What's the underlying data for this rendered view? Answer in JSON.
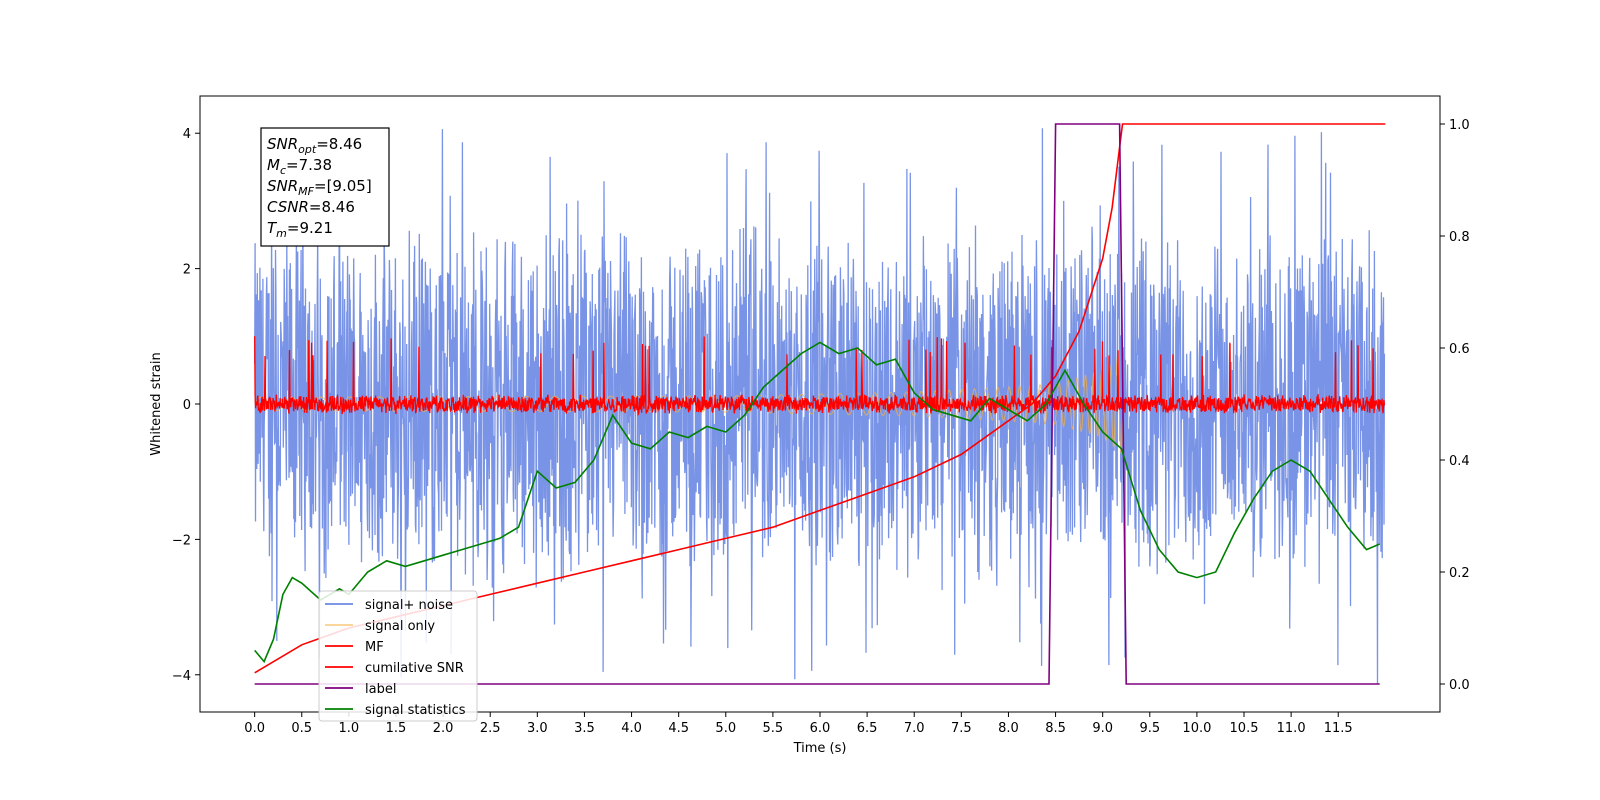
{
  "chart_data": {
    "type": "line",
    "xlabel": "Time (s)",
    "ylabel": "Whitened strain",
    "xlim": [
      -0.58,
      12.58
    ],
    "ylim": [
      -4.55,
      4.55
    ],
    "y2lim": [
      -0.05,
      1.05
    ],
    "x_ticks": [
      0.0,
      0.5,
      1.0,
      1.5,
      2.0,
      2.5,
      3.0,
      3.5,
      4.0,
      4.5,
      5.0,
      5.5,
      6.0,
      6.5,
      7.0,
      7.5,
      8.0,
      8.5,
      9.0,
      9.5,
      10.0,
      10.5,
      11.0,
      11.5
    ],
    "x_tick_labels": [
      "0.0",
      "0.5",
      "1.0",
      "1.5",
      "2.0",
      "2.5",
      "3.0",
      "3.5",
      "4.0",
      "4.5",
      "5.0",
      "5.5",
      "6.0",
      "6.5",
      "7.0",
      "7.5",
      "8.0",
      "8.5",
      "9.0",
      "9.5",
      "10.0",
      "10.5",
      "11.0",
      "11.5"
    ],
    "y_ticks": [
      -4,
      -2,
      0,
      2,
      4
    ],
    "y_tick_labels": [
      "−4",
      "−2",
      "0",
      "2",
      "4"
    ],
    "y2_ticks": [
      0.0,
      0.2,
      0.4,
      0.6,
      0.8,
      1.0
    ],
    "y2_tick_labels": [
      "0.0",
      "0.2",
      "0.4",
      "0.6",
      "0.8",
      "1.0"
    ],
    "grid": false,
    "legend_position": "lower-left",
    "annotation": {
      "lines": [
        {
          "sym": "SNR",
          "sub": "opt",
          "value": "=8.46"
        },
        {
          "sym": "M",
          "sub": "c",
          "value": "=7.38"
        },
        {
          "sym": "SNR",
          "sub": "MF",
          "value": "=[9.05]"
        },
        {
          "sym": "CSNR",
          "sub": "",
          "value": "=8.46"
        },
        {
          "sym": "T",
          "sub": "m",
          "value": "=9.21"
        }
      ]
    },
    "series": [
      {
        "name": "signal+ noise",
        "color": "#6a88e3",
        "axis": "left",
        "style": "noise",
        "x_range": [
          0.0,
          11.99
        ],
        "mean": 0.0,
        "band": [
          -2.6,
          3.0
        ],
        "extremes_max": 4.1,
        "extremes_min": -4.15
      },
      {
        "name": "signal only",
        "color": "#f5b041",
        "axis": "left",
        "style": "chirp",
        "x_range": [
          0.0,
          9.21
        ],
        "envelope": [
          [
            0.0,
            0.1
          ],
          [
            5.0,
            0.12
          ],
          [
            7.0,
            0.18
          ],
          [
            8.0,
            0.25
          ],
          [
            8.5,
            0.3
          ],
          [
            9.0,
            0.5
          ],
          [
            9.21,
            0.75
          ]
        ]
      },
      {
        "name": "MF",
        "color": "#ff0000",
        "axis": "left",
        "style": "noise",
        "x_range": [
          0.0,
          11.99
        ],
        "mean": 0.0,
        "band": [
          -0.15,
          0.15
        ],
        "extremes_max": 1.0,
        "extremes_min": -0.15
      },
      {
        "name": "cumilative SNR",
        "color": "#ff0000",
        "axis": "right",
        "x": [
          0.0,
          0.5,
          1.0,
          1.5,
          2.0,
          2.5,
          3.0,
          3.5,
          4.0,
          4.5,
          5.0,
          5.5,
          6.0,
          6.5,
          7.0,
          7.5,
          8.0,
          8.25,
          8.5,
          8.75,
          9.0,
          9.1,
          9.21,
          12.0
        ],
        "y": [
          0.02,
          0.07,
          0.1,
          0.12,
          0.14,
          0.16,
          0.18,
          0.2,
          0.22,
          0.24,
          0.26,
          0.28,
          0.31,
          0.34,
          0.37,
          0.41,
          0.47,
          0.5,
          0.55,
          0.63,
          0.76,
          0.85,
          1.0,
          1.0
        ]
      },
      {
        "name": "label",
        "color": "#800080",
        "axis": "right",
        "x": [
          0.0,
          8.43,
          8.5,
          9.18,
          9.25,
          11.94
        ],
        "y": [
          0.0,
          0.0,
          1.0,
          1.0,
          0.0,
          0.0
        ]
      },
      {
        "name": "signal statistics",
        "color": "#008000",
        "axis": "right",
        "x": [
          0.0,
          0.1,
          0.2,
          0.3,
          0.4,
          0.5,
          0.7,
          0.9,
          1.0,
          1.2,
          1.4,
          1.6,
          1.8,
          2.0,
          2.2,
          2.4,
          2.6,
          2.8,
          3.0,
          3.2,
          3.4,
          3.6,
          3.8,
          4.0,
          4.2,
          4.4,
          4.6,
          4.8,
          5.0,
          5.2,
          5.4,
          5.6,
          5.8,
          6.0,
          6.2,
          6.4,
          6.6,
          6.8,
          7.0,
          7.2,
          7.4,
          7.6,
          7.8,
          8.0,
          8.2,
          8.4,
          8.6,
          8.8,
          9.0,
          9.2,
          9.4,
          9.6,
          9.8,
          10.0,
          10.2,
          10.4,
          10.6,
          10.8,
          11.0,
          11.2,
          11.4,
          11.6,
          11.8,
          11.94
        ],
        "y": [
          0.06,
          0.04,
          0.08,
          0.16,
          0.19,
          0.18,
          0.15,
          0.17,
          0.16,
          0.2,
          0.22,
          0.21,
          0.22,
          0.23,
          0.24,
          0.25,
          0.26,
          0.28,
          0.38,
          0.35,
          0.36,
          0.4,
          0.48,
          0.43,
          0.42,
          0.45,
          0.44,
          0.46,
          0.45,
          0.48,
          0.53,
          0.56,
          0.59,
          0.61,
          0.59,
          0.6,
          0.57,
          0.58,
          0.52,
          0.49,
          0.48,
          0.47,
          0.51,
          0.49,
          0.47,
          0.5,
          0.56,
          0.5,
          0.45,
          0.42,
          0.31,
          0.24,
          0.2,
          0.19,
          0.2,
          0.27,
          0.33,
          0.38,
          0.4,
          0.38,
          0.33,
          0.28,
          0.24,
          0.25
        ]
      }
    ]
  }
}
